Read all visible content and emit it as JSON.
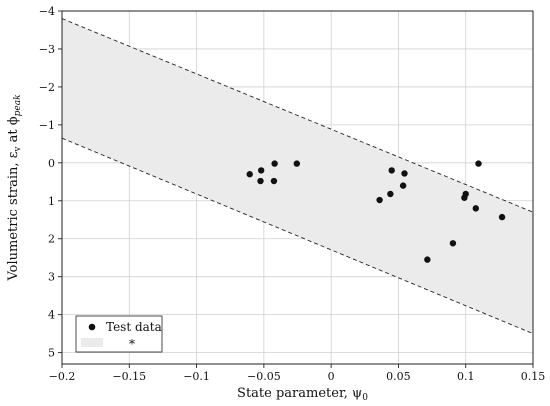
{
  "chart_data": {
    "type": "scatter",
    "xlabel": "State parameter, ψ",
    "xlabel_sub": "0",
    "ylabel_main": "Volumetric strain, ε",
    "ylabel_v": "v",
    "ylabel_at": " at ϕ",
    "ylabel_peak": "peak",
    "xlim": [
      -0.2,
      0.15
    ],
    "ylim": [
      -4,
      5.3
    ],
    "y_inverted": true,
    "xticks": [
      -0.2,
      -0.15,
      -0.1,
      -0.05,
      0,
      0.05,
      0.1,
      0.15
    ],
    "xtick_labels": [
      "−0.2",
      "−0.15",
      "−0.1",
      "−0.05",
      "0",
      "0.05",
      "0.1",
      "0.15"
    ],
    "yticks": [
      -4,
      -3,
      -2,
      -1,
      0,
      1,
      2,
      3,
      4,
      5
    ],
    "ytick_labels": [
      "−4",
      "−3",
      "−2",
      "−1",
      "0",
      "1",
      "2",
      "3",
      "4",
      "5"
    ],
    "grid": true,
    "legend_position": "bottom-left",
    "series": [
      {
        "name": "Test data",
        "marker": "circle",
        "color": "#111111",
        "points": [
          {
            "x": -0.0605,
            "y": 0.3
          },
          {
            "x": -0.0525,
            "y": 0.48
          },
          {
            "x": -0.052,
            "y": 0.2
          },
          {
            "x": -0.0425,
            "y": 0.48
          },
          {
            "x": -0.042,
            "y": 0.02
          },
          {
            "x": -0.0255,
            "y": 0.02
          },
          {
            "x": 0.036,
            "y": 0.98
          },
          {
            "x": 0.044,
            "y": 0.82
          },
          {
            "x": 0.045,
            "y": 0.2
          },
          {
            "x": 0.0535,
            "y": 0.6
          },
          {
            "x": 0.0545,
            "y": 0.28
          },
          {
            "x": 0.0715,
            "y": 2.55
          },
          {
            "x": 0.0905,
            "y": 2.12
          },
          {
            "x": 0.099,
            "y": 0.92
          },
          {
            "x": 0.1,
            "y": 0.82
          },
          {
            "x": 0.1075,
            "y": 1.2
          },
          {
            "x": 0.1095,
            "y": 0.02
          },
          {
            "x": 0.127,
            "y": 1.43
          }
        ]
      },
      {
        "name": "*",
        "type": "band",
        "fill": "#ebebeb",
        "upper_bound": {
          "x": [
            -0.2,
            0.15
          ],
          "y": [
            -3.8,
            1.3
          ]
        },
        "lower_bound": {
          "x": [
            -0.2,
            0.15
          ],
          "y": [
            -0.65,
            4.5
          ]
        }
      }
    ]
  }
}
